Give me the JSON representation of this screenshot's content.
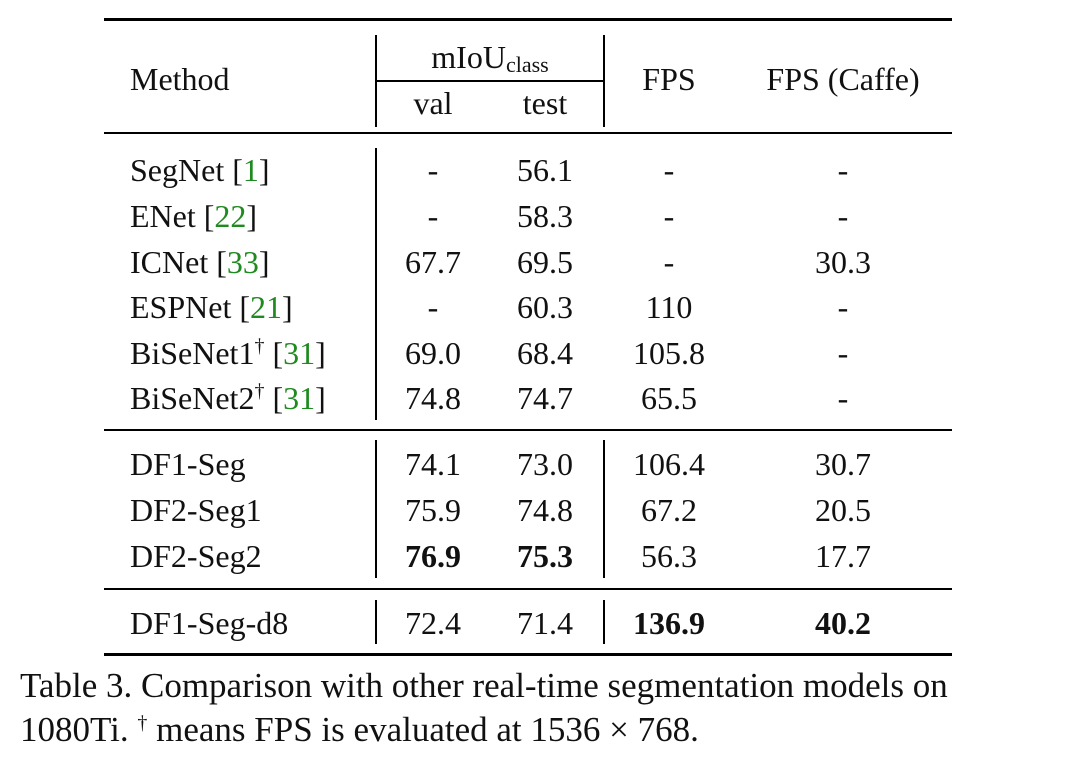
{
  "header": {
    "method": "Method",
    "miou_main": "mIoU",
    "miou_sub": "class",
    "val": "val",
    "test": "test",
    "fps": "FPS",
    "fps_caffe": "FPS (Caffe)"
  },
  "group1": [
    {
      "name": "SegNet",
      "dagger": "",
      "ref": "1",
      "val": "-",
      "test": "56.1",
      "fps": "-",
      "fps_caffe": "-"
    },
    {
      "name": "ENet",
      "dagger": "",
      "ref": "22",
      "val": "-",
      "test": "58.3",
      "fps": "-",
      "fps_caffe": "-"
    },
    {
      "name": "ICNet",
      "dagger": "",
      "ref": "33",
      "val": "67.7",
      "test": "69.5",
      "fps": "-",
      "fps_caffe": "30.3"
    },
    {
      "name": "ESPNet",
      "dagger": "",
      "ref": "21",
      "val": "-",
      "test": "60.3",
      "fps": "110",
      "fps_caffe": "-"
    },
    {
      "name": "BiSeNet1",
      "dagger": "†",
      "ref": "31",
      "val": "69.0",
      "test": "68.4",
      "fps": "105.8",
      "fps_caffe": "-"
    },
    {
      "name": "BiSeNet2",
      "dagger": "†",
      "ref": "31",
      "val": "74.8",
      "test": "74.7",
      "fps": "65.5",
      "fps_caffe": "-"
    }
  ],
  "group2": [
    {
      "name": "DF1-Seg",
      "val": "74.1",
      "test": "73.0",
      "fps": "106.4",
      "fps_caffe": "30.7"
    },
    {
      "name": "DF2-Seg1",
      "val": "75.9",
      "test": "74.8",
      "fps": "67.2",
      "fps_caffe": "20.5"
    },
    {
      "name": "DF2-Seg2",
      "val": "76.9",
      "test": "75.3",
      "fps": "56.3",
      "fps_caffe": "17.7"
    }
  ],
  "group3": [
    {
      "name": "DF1-Seg-d8",
      "val": "72.4",
      "test": "71.4",
      "fps": "136.9",
      "fps_caffe": "40.2"
    }
  ],
  "caption": {
    "line1": "Table 3. Comparison with other real-time segmentation models on",
    "line2_a": "1080Ti.",
    "line2_dagger": "†",
    "line2_b": "means FPS is evaluated at 1536 × 768."
  }
}
